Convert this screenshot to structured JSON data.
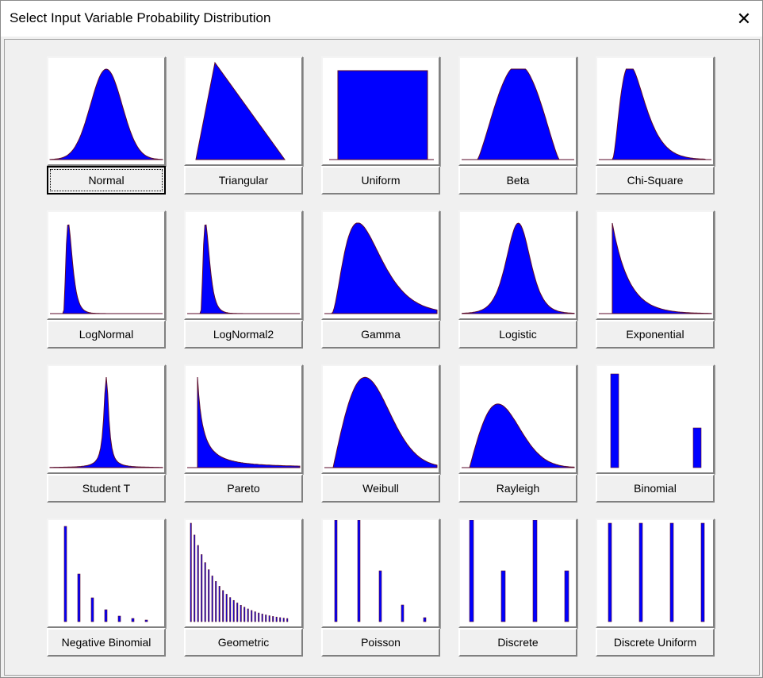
{
  "window": {
    "title": "Select Input Variable Probability Distribution",
    "close_glyph": "✕"
  },
  "accent_fill": "#0000ff",
  "accent_stroke": "#5a0a2a",
  "distributions": [
    {
      "label": "Normal",
      "icon": "normal-curve-icon"
    },
    {
      "label": "Triangular",
      "icon": "triangular-curve-icon"
    },
    {
      "label": "Uniform",
      "icon": "uniform-curve-icon"
    },
    {
      "label": "Beta",
      "icon": "beta-curve-icon"
    },
    {
      "label": "Chi-Square",
      "icon": "chi-square-curve-icon"
    },
    {
      "label": "LogNormal",
      "icon": "lognormal-curve-icon"
    },
    {
      "label": "LogNormal2",
      "icon": "lognormal2-curve-icon"
    },
    {
      "label": "Gamma",
      "icon": "gamma-curve-icon"
    },
    {
      "label": "Logistic",
      "icon": "logistic-curve-icon"
    },
    {
      "label": "Exponential",
      "icon": "exponential-curve-icon"
    },
    {
      "label": "Student T",
      "icon": "student-t-curve-icon"
    },
    {
      "label": "Pareto",
      "icon": "pareto-curve-icon"
    },
    {
      "label": "Weibull",
      "icon": "weibull-curve-icon"
    },
    {
      "label": "Rayleigh",
      "icon": "rayleigh-curve-icon"
    },
    {
      "label": "Binomial",
      "icon": "binomial-bars-icon"
    },
    {
      "label": "Negative Binomial",
      "icon": "negative-binomial-bars-icon"
    },
    {
      "label": "Geometric",
      "icon": "geometric-bars-icon"
    },
    {
      "label": "Poisson",
      "icon": "poisson-bars-icon"
    },
    {
      "label": "Discrete",
      "icon": "discrete-bars-icon"
    },
    {
      "label": "Discrete Uniform",
      "icon": "discrete-uniform-bars-icon"
    }
  ]
}
